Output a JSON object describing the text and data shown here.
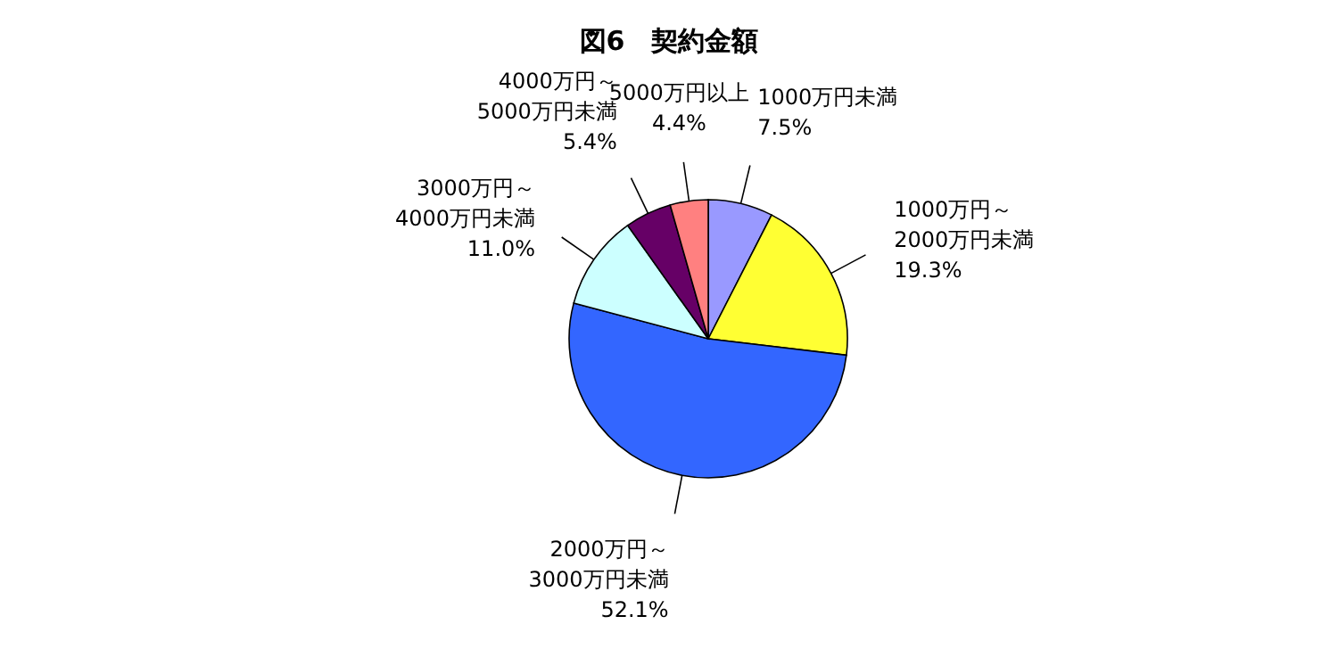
{
  "chart_data": {
    "type": "pie",
    "title": "図6　契約金額",
    "categories": [
      "1000万円未満",
      "1000万円～\n2000万円未満",
      "2000万円～\n3000万円未満",
      "3000万円～\n4000万円未満",
      "4000万円～\n5000万円未満",
      "5000万円以上"
    ],
    "values": [
      7.5,
      19.3,
      52.1,
      11.0,
      5.4,
      4.4
    ],
    "value_labels": [
      "7.5%",
      "19.3%",
      "52.1%",
      "11.0%",
      "5.4%",
      "4.4%"
    ],
    "colors": [
      "#9999ff",
      "#ffff33",
      "#3366ff",
      "#ccffff",
      "#660066",
      "#ff8080"
    ]
  }
}
